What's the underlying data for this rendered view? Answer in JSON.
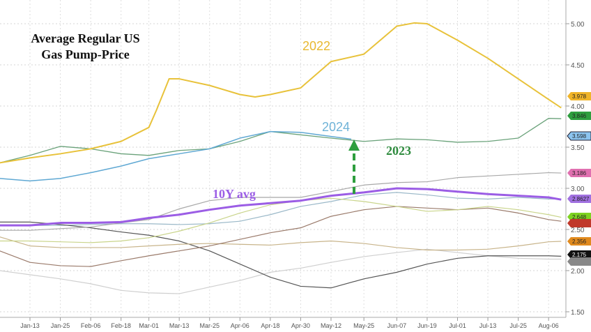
{
  "chart_data": {
    "type": "line",
    "title": "Average Regular US Gas Pump-Price",
    "xlabel": "",
    "ylabel": "",
    "ylim": [
      1.4,
      5.2
    ],
    "yticks": [
      "5.00",
      "4.50",
      "4.00",
      "3.50",
      "3.00",
      "2.50",
      "2.00",
      "1.50"
    ],
    "xticks": [
      "Jan-13",
      "Jan-25",
      "Feb-06",
      "Feb-18",
      "Mar-01",
      "Mar-13",
      "Mar-25",
      "Apr-06",
      "Apr-18",
      "Apr-30",
      "May-12",
      "May-25",
      "Jun-07",
      "Jun-19",
      "Jul-01",
      "Jul-13",
      "Jul-25",
      "Aug-06"
    ],
    "grid": true,
    "axis_side": "right",
    "x": [
      "Jan-01",
      "Jan-13",
      "Jan-25",
      "Feb-06",
      "Feb-18",
      "Mar-01",
      "Mar-13",
      "Mar-25",
      "Apr-06",
      "Apr-18",
      "Apr-30",
      "May-12",
      "May-25",
      "Jun-07",
      "Jun-19",
      "Jul-01",
      "Jul-13",
      "Jul-25",
      "Aug-06",
      "Aug-11"
    ],
    "series": [
      {
        "name": "2022",
        "color": "#e8c23a",
        "width": 2,
        "x": [
          "Jan-01",
          "Jan-13",
          "Jan-25",
          "Feb-06",
          "Feb-18",
          "Mar-01",
          "Mar-04",
          "Mar-09",
          "Mar-13",
          "Mar-25",
          "Apr-06",
          "Apr-12",
          "Apr-18",
          "Apr-30",
          "May-12",
          "May-25",
          "Jun-07",
          "Jun-14",
          "Jun-19",
          "Jul-01",
          "Jul-13",
          "Jul-25",
          "Aug-06",
          "Aug-11"
        ],
        "values": [
          3.31,
          3.37,
          3.42,
          3.48,
          3.57,
          3.74,
          3.95,
          4.33,
          4.33,
          4.25,
          4.14,
          4.11,
          4.14,
          4.22,
          4.54,
          4.63,
          4.97,
          5.01,
          5.0,
          4.8,
          4.58,
          4.33,
          4.08,
          3.978
        ],
        "end_label": "3.978",
        "tag_color": "#f0b429"
      },
      {
        "name": "2023",
        "color": "#6aa27a",
        "width": 1.3,
        "values": [
          3.31,
          3.4,
          3.51,
          3.48,
          3.42,
          3.4,
          3.46,
          3.48,
          3.57,
          3.69,
          3.65,
          3.61,
          3.57,
          3.6,
          3.59,
          3.56,
          3.57,
          3.61,
          3.85,
          3.846
        ],
        "end_label": "3.846",
        "tag_color": "#2e9e3e"
      },
      {
        "name": "2024",
        "color": "#5fa8d3",
        "width": 1.5,
        "x": [
          "Jan-01",
          "Jan-13",
          "Jan-25",
          "Feb-06",
          "Feb-18",
          "Mar-01",
          "Mar-13",
          "Mar-25",
          "Apr-06",
          "Apr-18",
          "Apr-30",
          "May-12",
          "May-20"
        ],
        "values": [
          3.12,
          3.09,
          3.12,
          3.19,
          3.27,
          3.36,
          3.42,
          3.48,
          3.61,
          3.69,
          3.68,
          3.63,
          3.598
        ],
        "end_label": "3.598",
        "tag_color": "#8cc4ef"
      },
      {
        "name": "10Y avg",
        "color": "#9b5de5",
        "width": 3,
        "values": [
          2.55,
          2.55,
          2.58,
          2.58,
          2.59,
          2.64,
          2.68,
          2.74,
          2.79,
          2.82,
          2.85,
          2.91,
          2.95,
          3.0,
          2.99,
          2.96,
          2.93,
          2.91,
          2.89,
          2.8627
        ],
        "end_label": "2.8627",
        "tag_color": "#a070e0"
      },
      {
        "color": "#a8a8a8",
        "width": 1.2,
        "values": [
          2.49,
          2.49,
          2.51,
          2.53,
          2.58,
          2.62,
          2.75,
          2.85,
          2.89,
          2.89,
          2.89,
          2.96,
          3.04,
          3.07,
          3.08,
          3.13,
          3.15,
          3.17,
          3.19,
          3.186
        ],
        "end_label": "3.186",
        "tag_color": "#e070b0"
      },
      {
        "color": "#c9d48a",
        "width": 1.2,
        "values": [
          2.36,
          2.36,
          2.35,
          2.34,
          2.36,
          2.4,
          2.48,
          2.58,
          2.7,
          2.8,
          2.85,
          2.88,
          2.84,
          2.78,
          2.72,
          2.74,
          2.78,
          2.74,
          2.68,
          2.648
        ],
        "end_label": "2.648",
        "tag_color": "#7ed321"
      },
      {
        "color": "#9a7a6a",
        "width": 1.2,
        "values": [
          2.24,
          2.1,
          2.06,
          2.05,
          2.12,
          2.18,
          2.24,
          2.3,
          2.38,
          2.46,
          2.52,
          2.66,
          2.74,
          2.78,
          2.76,
          2.74,
          2.76,
          2.7,
          2.62,
          2.6
        ],
        "end_label": "",
        "tag_color": "#c0392b"
      },
      {
        "color": "#c8b48a",
        "width": 1.2,
        "values": [
          2.41,
          2.3,
          2.28,
          2.28,
          2.28,
          2.3,
          2.32,
          2.33,
          2.32,
          2.31,
          2.34,
          2.36,
          2.33,
          2.28,
          2.25,
          2.25,
          2.26,
          2.3,
          2.35,
          2.356
        ],
        "end_label": "2.356",
        "tag_color": "#e08a1e"
      },
      {
        "color": "#555555",
        "width": 1.2,
        "values": [
          2.59,
          2.59,
          2.56,
          2.52,
          2.47,
          2.43,
          2.36,
          2.24,
          2.08,
          1.92,
          1.81,
          1.79,
          1.9,
          1.98,
          2.08,
          2.15,
          2.18,
          2.18,
          2.18,
          2.175
        ],
        "end_label": "2.175",
        "tag_color": "#111111"
      },
      {
        "color": "#cfcfcf",
        "width": 1.2,
        "values": [
          2.0,
          1.95,
          1.9,
          1.84,
          1.76,
          1.73,
          1.72,
          1.8,
          1.88,
          1.98,
          2.03,
          2.1,
          2.17,
          2.22,
          2.26,
          2.22,
          2.18,
          2.15,
          2.14,
          2.14
        ],
        "end_label": "",
        "tag_color": "#888888"
      },
      {
        "color": "#9ab8c8",
        "width": 1.2,
        "values": [
          2.55,
          2.55,
          2.55,
          2.56,
          2.57,
          2.57,
          2.56,
          2.57,
          2.6,
          2.68,
          2.78,
          2.84,
          2.92,
          2.95,
          2.92,
          2.88,
          2.87,
          2.89,
          2.87,
          2.87
        ],
        "end_label": "",
        "tag_color": ""
      }
    ]
  },
  "annotations": {
    "label_2022": "2022",
    "label_2024": "2024",
    "label_2023": "2023",
    "label_10y": "10Y avg",
    "title_line1": "Average Regular US",
    "title_line2": "Gas Pump-Price"
  },
  "colors": {
    "label_2022": "#e8b830",
    "label_2024": "#6fb3d8",
    "label_2023": "#2e8b3e",
    "label_10y": "#9b5de5",
    "arrow": "#2e9e3e"
  }
}
